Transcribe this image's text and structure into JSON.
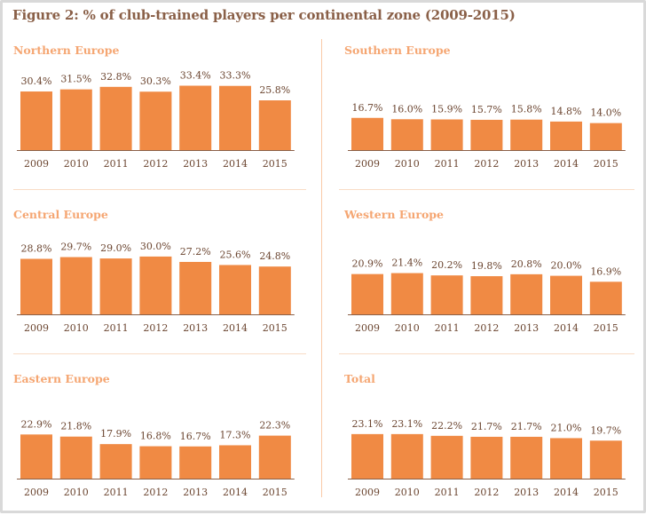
{
  "title": "Figure 2: % of club-trained players per continental zone (2009-2015)",
  "colors": {
    "bar": "#f08a44",
    "baseline": "#8a6048",
    "panel_title": "#f5a672",
    "title": "#8a6048"
  },
  "chart_data": [
    {
      "type": "bar",
      "title": "Northern Europe",
      "categories": [
        "2009",
        "2010",
        "2011",
        "2012",
        "2013",
        "2014",
        "2015"
      ],
      "values": [
        30.4,
        31.5,
        32.8,
        30.3,
        33.4,
        33.3,
        25.8
      ],
      "labels": [
        "30.4%",
        "31.5%",
        "32.8%",
        "30.3%",
        "33.4%",
        "33.3%",
        "25.8%"
      ]
    },
    {
      "type": "bar",
      "title": "Southern Europe",
      "categories": [
        "2009",
        "2010",
        "2011",
        "2012",
        "2013",
        "2014",
        "2015"
      ],
      "values": [
        16.7,
        16.0,
        15.9,
        15.7,
        15.8,
        14.8,
        14.0
      ],
      "labels": [
        "16.7%",
        "16.0%",
        "15.9%",
        "15.7%",
        "15.8%",
        "14.8%",
        "14.0%"
      ]
    },
    {
      "type": "bar",
      "title": "Central Europe",
      "categories": [
        "2009",
        "2010",
        "2011",
        "2012",
        "2013",
        "2014",
        "2015"
      ],
      "values": [
        28.8,
        29.7,
        29.0,
        30.0,
        27.2,
        25.6,
        24.8
      ],
      "labels": [
        "28.8%",
        "29.7%",
        "29.0%",
        "30.0%",
        "27.2%",
        "25.6%",
        "24.8%"
      ]
    },
    {
      "type": "bar",
      "title": "Western Europe",
      "categories": [
        "2009",
        "2010",
        "2011",
        "2012",
        "2013",
        "2014",
        "2015"
      ],
      "values": [
        20.9,
        21.4,
        20.2,
        19.8,
        20.8,
        20.0,
        16.9
      ],
      "labels": [
        "20.9%",
        "21.4%",
        "20.2%",
        "19.8%",
        "20.8%",
        "20.0%",
        "16.9%"
      ]
    },
    {
      "type": "bar",
      "title": "Eastern Europe",
      "categories": [
        "2009",
        "2010",
        "2011",
        "2012",
        "2013",
        "2014",
        "2015"
      ],
      "values": [
        22.9,
        21.8,
        17.9,
        16.8,
        16.7,
        17.3,
        22.3
      ],
      "labels": [
        "22.9%",
        "21.8%",
        "17.9%",
        "16.8%",
        "16.7%",
        "17.3%",
        "22.3%"
      ]
    },
    {
      "type": "bar",
      "title": "Total",
      "categories": [
        "2009",
        "2010",
        "2011",
        "2012",
        "2013",
        "2014",
        "2015"
      ],
      "values": [
        23.1,
        23.1,
        22.2,
        21.7,
        21.7,
        21.0,
        19.7
      ],
      "labels": [
        "23.1%",
        "23.1%",
        "22.2%",
        "21.7%",
        "21.7%",
        "21.0%",
        "19.7%"
      ]
    }
  ]
}
